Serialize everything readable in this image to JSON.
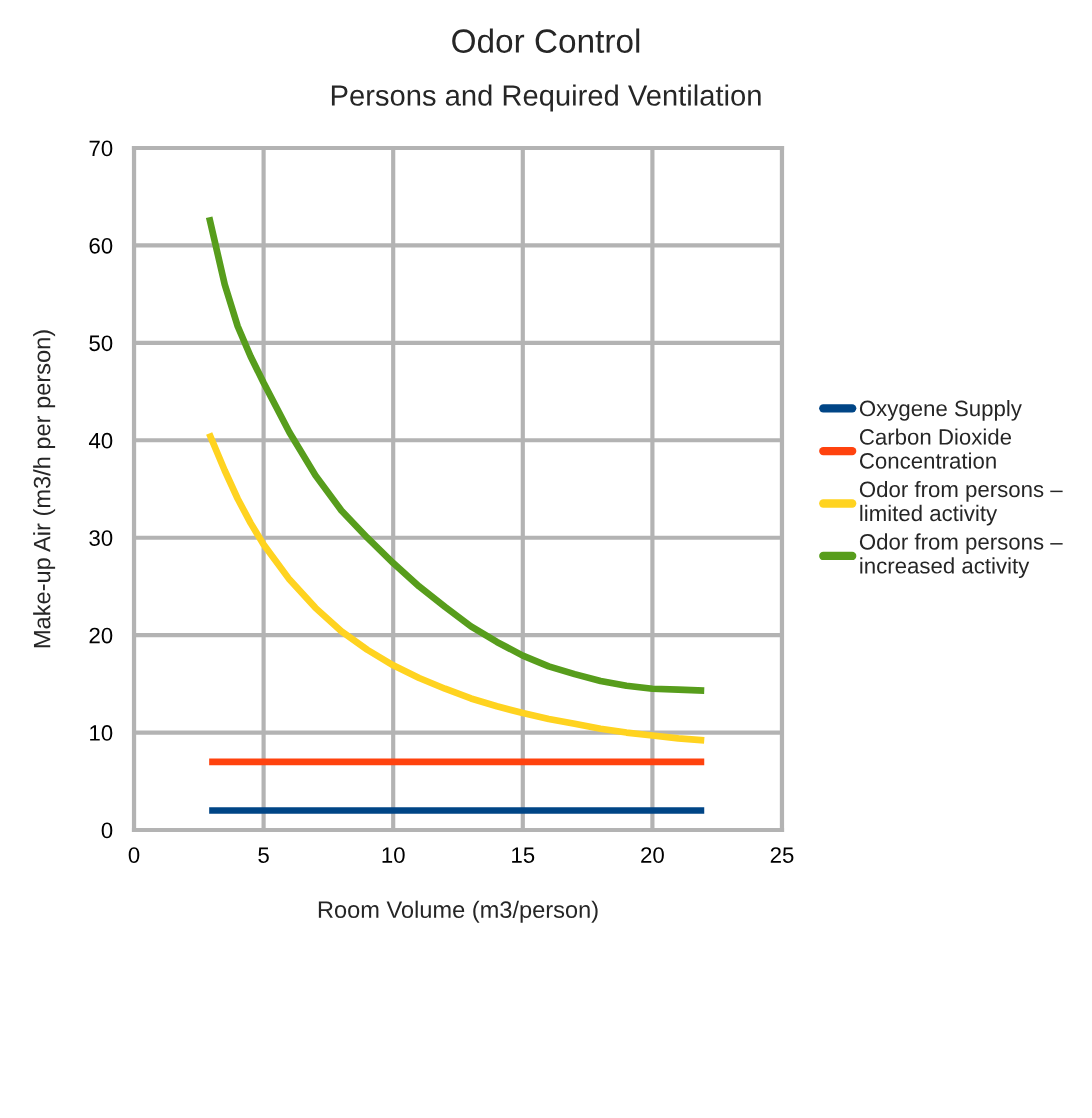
{
  "chart_data": {
    "type": "line",
    "title": "Odor Control",
    "subtitle": "Persons and Required Ventilation",
    "xlabel": "Room Volume (m3/person)",
    "ylabel": "Make-up Air (m3/h per person)",
    "xlim": [
      0,
      25
    ],
    "xticks": [
      0,
      5,
      10,
      15,
      20,
      25
    ],
    "ylim": [
      0,
      70
    ],
    "yticks": [
      0,
      10,
      20,
      30,
      40,
      50,
      60,
      70
    ],
    "grid": true,
    "legend": "right",
    "marker": "none",
    "line_style": "solid",
    "series": [
      {
        "name": "Oxygene Supply",
        "color": "#004586",
        "x": [
          2.9,
          22
        ],
        "values": [
          2,
          2
        ]
      },
      {
        "name": "Carbon Dioxide\nConcentration",
        "color": "#ff420e",
        "x": [
          2.9,
          22
        ],
        "values": [
          7,
          7
        ]
      },
      {
        "name": "Odor from persons –\nlimited activity",
        "color": "#ffd320",
        "x": [
          2.9,
          3.5,
          4,
          4.5,
          5,
          6,
          7,
          8,
          9,
          10,
          11,
          12,
          13,
          14,
          15,
          16,
          17,
          18,
          19,
          20,
          21,
          22
        ],
        "values": [
          40.7,
          36.9,
          34.0,
          31.5,
          29.3,
          25.7,
          22.8,
          20.4,
          18.5,
          16.9,
          15.6,
          14.5,
          13.5,
          12.7,
          12.0,
          11.4,
          10.9,
          10.4,
          10.0,
          9.7,
          9.4,
          9.2
        ]
      },
      {
        "name": "Odor from persons –\nincreased activity",
        "color": "#579d1c",
        "x": [
          2.9,
          3.5,
          4,
          4.5,
          5,
          6,
          7,
          8,
          9,
          10,
          11,
          12,
          13,
          14,
          15,
          16,
          17,
          18,
          19,
          20,
          21,
          22
        ],
        "values": [
          62.9,
          56,
          51.7,
          48.6,
          45.9,
          40.8,
          36.4,
          32.8,
          30.0,
          27.4,
          25.0,
          22.9,
          20.9,
          19.3,
          17.9,
          16.8,
          16.0,
          15.3,
          14.8,
          14.5,
          14.4,
          14.3
        ]
      }
    ]
  }
}
